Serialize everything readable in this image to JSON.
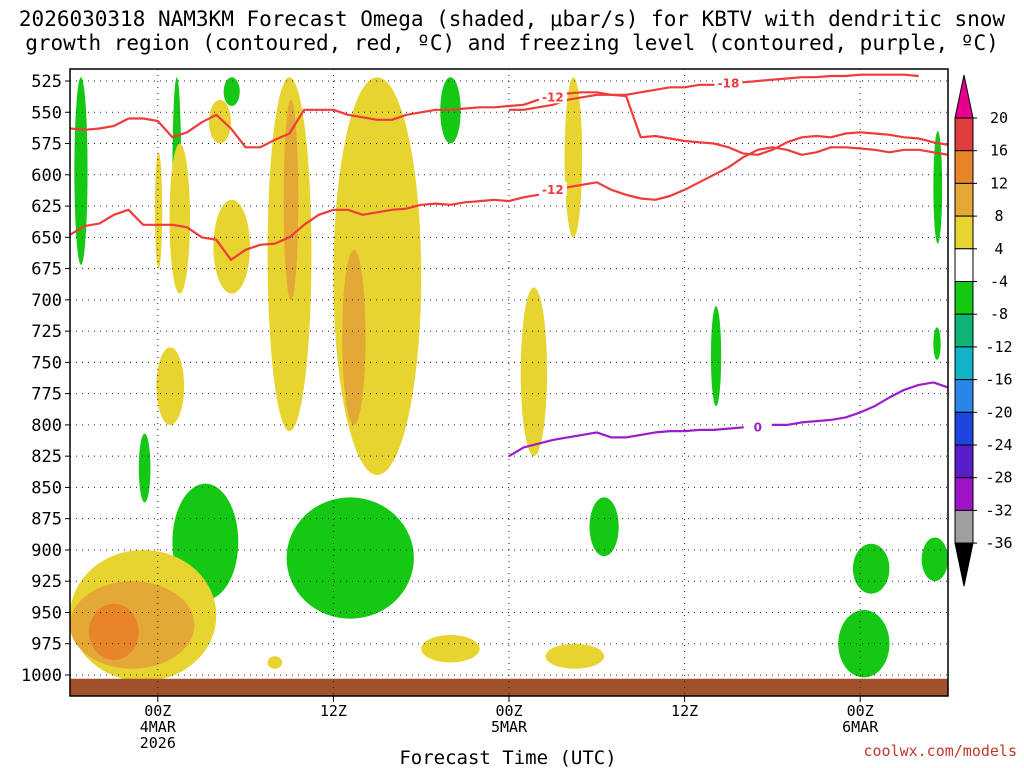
{
  "chart_data": {
    "type": "heatmap",
    "title": [
      "2026030318 NAM3KM Forecast Omega (shaded, μbar/s) for KBTV with dendritic snow",
      "growth region (contoured, red, ºC) and freezing level (contoured, purple, ºC)"
    ],
    "xlabel": "Forecast Time (UTC)",
    "ylabel": "",
    "y_units": "hPa",
    "ylim": [
      1000,
      525
    ],
    "y_ticks": [
      525,
      550,
      575,
      600,
      625,
      650,
      675,
      700,
      725,
      750,
      775,
      800,
      825,
      850,
      875,
      900,
      925,
      950,
      975,
      1000
    ],
    "x_range_hours": [
      0,
      60
    ],
    "x_ticks": [
      {
        "hour": 6,
        "lines": [
          "00Z",
          "4MAR",
          "2026"
        ]
      },
      {
        "hour": 18,
        "lines": [
          "12Z"
        ]
      },
      {
        "hour": 30,
        "lines": [
          "00Z",
          "5MAR"
        ]
      },
      {
        "hour": 42,
        "lines": [
          "12Z"
        ]
      },
      {
        "hour": 54,
        "lines": [
          "00Z",
          "6MAR"
        ]
      }
    ],
    "grid": true,
    "colorbar": {
      "units": "μbar/s",
      "ticks": [
        20,
        16,
        12,
        8,
        4,
        -4,
        -8,
        -12,
        -16,
        -20,
        -24,
        -28,
        -32,
        -36
      ],
      "bins": [
        {
          "lo": 20,
          "hi": 24,
          "color": "#e8008c"
        },
        {
          "lo": 16,
          "hi": 20,
          "color": "#e03e3e"
        },
        {
          "lo": 12,
          "hi": 16,
          "color": "#e8842a"
        },
        {
          "lo": 8,
          "hi": 12,
          "color": "#e4a836"
        },
        {
          "lo": 4,
          "hi": 8,
          "color": "#e8d430"
        },
        {
          "lo": -4,
          "hi": 4,
          "color": "#ffffff"
        },
        {
          "lo": -8,
          "hi": -4,
          "color": "#14c814"
        },
        {
          "lo": -12,
          "hi": -8,
          "color": "#10b478"
        },
        {
          "lo": -16,
          "hi": -12,
          "color": "#12b4c8"
        },
        {
          "lo": -20,
          "hi": -16,
          "color": "#2a86e6"
        },
        {
          "lo": -24,
          "hi": -20,
          "color": "#1e46dc"
        },
        {
          "lo": -28,
          "hi": -24,
          "color": "#5a1ec8"
        },
        {
          "lo": -32,
          "hi": -28,
          "color": "#a014c8"
        },
        {
          "lo": -36,
          "hi": -32,
          "color": "#a0a0a0"
        }
      ]
    },
    "omega_regions": [
      {
        "name": "uplift-left-top",
        "value": -6,
        "hours": [
          0.3,
          1.2
        ],
        "p_top": 522,
        "p_bottom": 672
      },
      {
        "name": "uplift-early-column",
        "value": -6,
        "hours": [
          7.0,
          7.6
        ],
        "p_top": 522,
        "p_bottom": 675
      },
      {
        "name": "sink-early-column",
        "value": 5,
        "hours": [
          6.8,
          8.2
        ],
        "p_top": 575,
        "p_bottom": 695
      },
      {
        "name": "uplift-upper-small",
        "value": -6,
        "hours": [
          10.5,
          11.6
        ],
        "p_top": 522,
        "p_bottom": 545
      },
      {
        "name": "sink-upper-small",
        "value": 5,
        "hours": [
          9.5,
          11.0
        ],
        "p_top": 540,
        "p_bottom": 575
      },
      {
        "name": "sink-descending-arm",
        "value": 5,
        "hours": [
          9.8,
          12.3
        ],
        "p_top": 620,
        "p_bottom": 695
      },
      {
        "name": "sink-column-A",
        "value": 6,
        "hours": [
          13.5,
          16.5
        ],
        "p_top": 522,
        "p_bottom": 805
      },
      {
        "name": "sink-column-A-core",
        "value": 10,
        "hours": [
          14.6,
          15.6
        ],
        "p_top": 540,
        "p_bottom": 700
      },
      {
        "name": "sink-column-B",
        "value": 6,
        "hours": [
          18.0,
          24.0
        ],
        "p_top": 522,
        "p_bottom": 840
      },
      {
        "name": "sink-column-B-core",
        "value": 10,
        "hours": [
          18.6,
          20.2
        ],
        "p_top": 660,
        "p_bottom": 800
      },
      {
        "name": "uplift-top-mid",
        "value": -6,
        "hours": [
          25.3,
          26.7
        ],
        "p_top": 522,
        "p_bottom": 575
      },
      {
        "name": "sink-thin-top",
        "value": 5,
        "hours": [
          33.8,
          35.0
        ],
        "p_top": 522,
        "p_bottom": 650
      },
      {
        "name": "sink-mid-thin",
        "value": 5,
        "hours": [
          30.8,
          32.6
        ],
        "p_top": 690,
        "p_bottom": 825
      },
      {
        "name": "sink-thin-left",
        "value": 5,
        "hours": [
          5.8,
          6.3
        ],
        "p_top": 582,
        "p_bottom": 675
      },
      {
        "name": "sink-small-mid",
        "value": 5,
        "hours": [
          5.9,
          7.8
        ],
        "p_top": 738,
        "p_bottom": 800
      },
      {
        "name": "uplift-small-dot",
        "value": -6,
        "hours": [
          4.7,
          5.5
        ],
        "p_top": 807,
        "p_bottom": 862
      },
      {
        "name": "uplift-mid-blob",
        "value": -6,
        "hours": [
          7.0,
          11.5
        ],
        "p_top": 847,
        "p_bottom": 940
      },
      {
        "name": "uplift-low-blob",
        "value": -6,
        "hours": [
          14.8,
          23.5
        ],
        "p_top": 858,
        "p_bottom": 955
      },
      {
        "name": "uplift-right-mid",
        "value": -6,
        "hours": [
          35.5,
          37.5
        ],
        "p_top": 858,
        "p_bottom": 905
      },
      {
        "name": "uplift-thin-right",
        "value": -6,
        "hours": [
          43.8,
          44.5
        ],
        "p_top": 705,
        "p_bottom": 785
      },
      {
        "name": "uplift-thin-edge",
        "value": -6,
        "hours": [
          59.0,
          59.6
        ],
        "p_top": 565,
        "p_bottom": 655
      },
      {
        "name": "uplift-thin-edge-2",
        "value": -6,
        "hours": [
          59.0,
          59.5
        ],
        "p_top": 722,
        "p_bottom": 748
      },
      {
        "name": "uplift-lower-right",
        "value": -6,
        "hours": [
          53.5,
          56.0
        ],
        "p_top": 895,
        "p_bottom": 935
      },
      {
        "name": "uplift-bottom-right",
        "value": -6,
        "hours": [
          52.5,
          56.0
        ],
        "p_top": 948,
        "p_bottom": 1002
      },
      {
        "name": "uplift-edge-right",
        "value": -6,
        "hours": [
          58.2,
          60.0
        ],
        "p_top": 890,
        "p_bottom": 925
      },
      {
        "name": "sink-lower-left",
        "value": 6,
        "hours": [
          0.0,
          10.0
        ],
        "p_top": 900,
        "p_bottom": 1005
      },
      {
        "name": "sink-lower-left-core",
        "value": 10,
        "hours": [
          0.0,
          8.5
        ],
        "p_top": 925,
        "p_bottom": 995
      },
      {
        "name": "sink-lower-left-max",
        "value": 14,
        "hours": [
          1.3,
          4.7
        ],
        "p_top": 943,
        "p_bottom": 988
      },
      {
        "name": "sink-low-small-1",
        "value": 5,
        "hours": [
          24.0,
          28.0
        ],
        "p_top": 968,
        "p_bottom": 990
      },
      {
        "name": "sink-low-small-2",
        "value": 5,
        "hours": [
          32.5,
          36.5
        ],
        "p_top": 975,
        "p_bottom": 995
      },
      {
        "name": "sink-low-dot",
        "value": 5,
        "hours": [
          13.5,
          14.5
        ],
        "p_top": 985,
        "p_bottom": 995
      }
    ],
    "series": [
      {
        "name": "Temperature -18 (DGZ)",
        "color": "#ee3b3b",
        "label": "-18",
        "x": [
          30,
          31,
          32,
          33,
          34,
          35,
          36,
          37,
          38,
          39,
          40,
          41,
          42,
          43,
          44,
          45,
          46,
          47,
          48,
          49,
          50,
          51,
          52,
          53,
          54,
          55,
          56,
          57,
          58
        ],
        "y": [
          548,
          548,
          546,
          544,
          540,
          538,
          536,
          536,
          536,
          534,
          532,
          530,
          530,
          528,
          528,
          527,
          526,
          525,
          524,
          523,
          522,
          522,
          521,
          521,
          520,
          520,
          520,
          520,
          521
        ]
      },
      {
        "name": "Temperature -12 (DGZ upper)",
        "color": "#ee3b3b",
        "label": "-12",
        "x": [
          0,
          1,
          2,
          3,
          4,
          5,
          6,
          7,
          8,
          9,
          10,
          11,
          12,
          13,
          14,
          15,
          16,
          17,
          18,
          19,
          20,
          21,
          22,
          23,
          24,
          25,
          26,
          27,
          28,
          29,
          30,
          31,
          32,
          33,
          34,
          35,
          36,
          37,
          38,
          39,
          40,
          41,
          42,
          43,
          44,
          45,
          46,
          47,
          48,
          49,
          50,
          51,
          52,
          53,
          54,
          55,
          56,
          57,
          58,
          59,
          60
        ],
        "y": [
          563,
          564,
          563,
          561,
          555,
          555,
          557,
          570,
          566,
          558,
          552,
          563,
          578,
          578,
          572,
          567,
          548,
          548,
          548,
          552,
          554,
          556,
          556,
          552,
          550,
          548,
          548,
          547,
          546,
          546,
          545,
          544,
          540,
          538,
          535,
          534,
          534,
          536,
          537,
          570,
          569,
          571,
          573,
          574,
          575,
          578,
          583,
          584,
          580,
          574,
          570,
          569,
          570,
          567,
          566,
          567,
          568,
          570,
          571,
          574,
          576
        ]
      },
      {
        "name": "Temperature -12 (DGZ lower)",
        "color": "#ee3b3b",
        "label": "-12",
        "x": [
          0,
          1,
          2,
          3,
          4,
          5,
          6,
          7,
          8,
          9,
          10,
          11,
          12,
          13,
          14,
          15,
          16,
          17,
          18,
          19,
          20,
          21,
          22,
          23,
          24,
          25,
          26,
          27,
          28,
          29,
          30,
          31,
          32,
          33,
          34,
          35,
          36,
          37,
          38,
          39,
          40,
          41,
          42,
          43,
          44,
          45,
          46,
          47,
          48,
          49,
          50,
          51,
          52,
          53,
          54,
          55,
          56,
          57,
          58,
          59,
          60
        ],
        "y": [
          648,
          641,
          639,
          632,
          628,
          640,
          640,
          640,
          642,
          650,
          652,
          668,
          660,
          656,
          655,
          650,
          640,
          632,
          628,
          628,
          632,
          630,
          628,
          627,
          624,
          623,
          624,
          622,
          621,
          620,
          621,
          618,
          616,
          612,
          610,
          608,
          606,
          612,
          616,
          619,
          620,
          617,
          612,
          606,
          600,
          594,
          586,
          580,
          578,
          580,
          584,
          582,
          578,
          578,
          579,
          580,
          582,
          580,
          580,
          582,
          584
        ]
      },
      {
        "name": "Freezing level 0",
        "color": "#9b1ec8",
        "label": "0",
        "x": [
          30,
          31,
          32,
          33,
          34,
          35,
          36,
          37,
          38,
          39,
          40,
          41,
          42,
          43,
          44,
          45,
          46,
          47,
          48,
          49,
          50,
          51,
          52,
          53,
          54,
          55,
          56,
          57,
          58,
          59,
          60
        ],
        "y": [
          825,
          818,
          815,
          812,
          810,
          808,
          806,
          810,
          810,
          808,
          806,
          805,
          805,
          804,
          804,
          803,
          802,
          802,
          800,
          800,
          798,
          797,
          796,
          794,
          790,
          785,
          778,
          772,
          768,
          766,
          770
        ]
      }
    ],
    "ground_color": "#a0522d",
    "credit": "coolwx.com/models"
  }
}
